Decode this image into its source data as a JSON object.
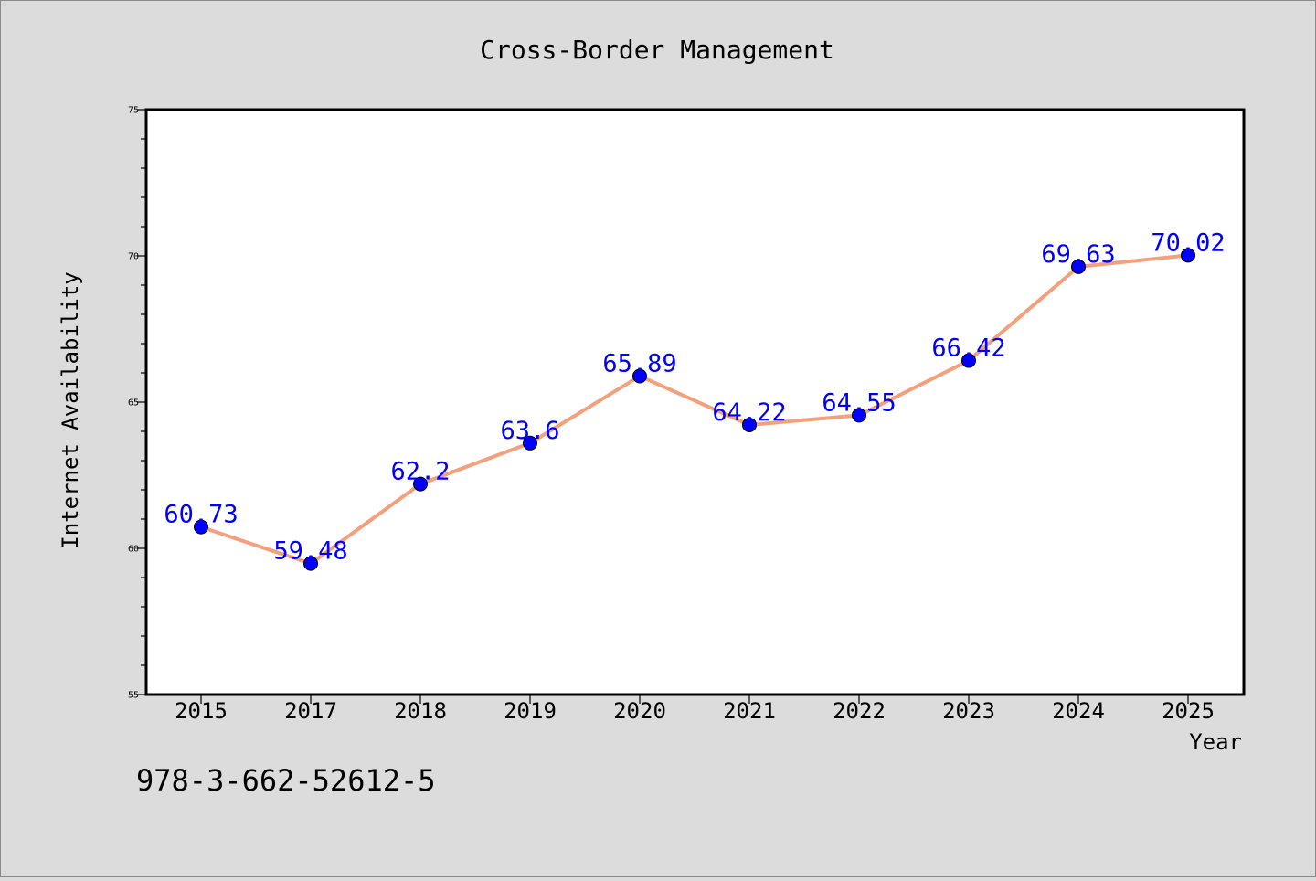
{
  "chart_data": {
    "type": "line",
    "title": "Cross-Border Management",
    "xlabel": "Year",
    "ylabel": "Internet Availability",
    "categories": [
      "2015",
      "2017",
      "2018",
      "2019",
      "2020",
      "2021",
      "2022",
      "2023",
      "2024",
      "2025"
    ],
    "series": [
      {
        "values": [
          60.73,
          59.48,
          62.2,
          63.6,
          65.89,
          64.22,
          64.55,
          66.42,
          69.63,
          70.02
        ],
        "labels": [
          "60.73",
          "59.48",
          "62.2",
          "63.6",
          "65.89",
          "64.22",
          "64.55",
          "66.42",
          "69.63",
          "70.02"
        ],
        "line_color": "#f4a07c",
        "marker_color": "#0000ff",
        "label_color": "#0000ff"
      }
    ],
    "ylim": [
      55,
      75
    ],
    "yticks": [
      "55",
      "60",
      "65",
      "70",
      "75"
    ],
    "grid": false,
    "legend": "none",
    "plot_background": "#ffffff",
    "figure_background": "#dcdcdc"
  },
  "annotation": {
    "isbn": "978-3-662-52612-5"
  }
}
